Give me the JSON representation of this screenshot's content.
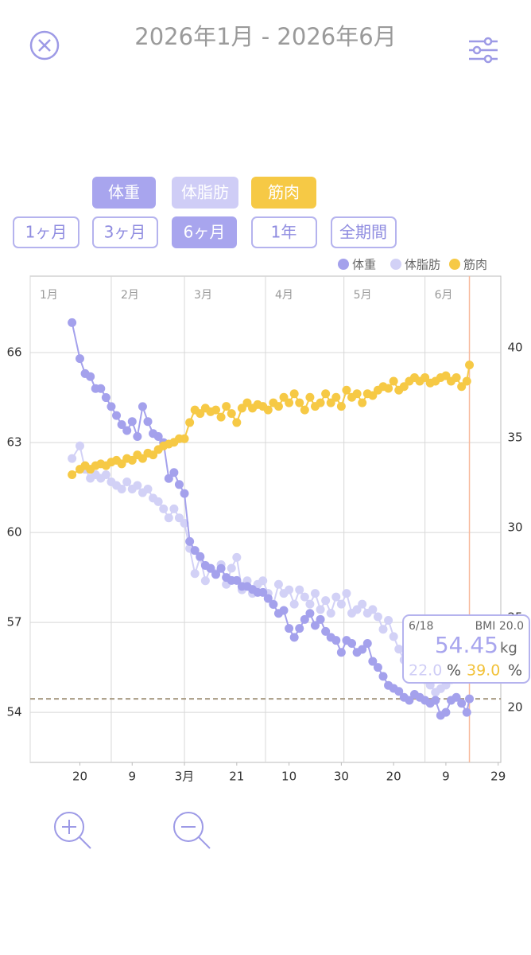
{
  "header": {
    "title": "2026年1月 - 2026年6月"
  },
  "series_toggles": [
    "体重",
    "体脂肪",
    "筋肉"
  ],
  "ranges": [
    "1ヶ月",
    "3ヶ月",
    "6ヶ月",
    "1年",
    "全期間"
  ],
  "chart_data": {
    "type": "line",
    "x": [
      16,
      19,
      21,
      23,
      25,
      27,
      29,
      31,
      33,
      35,
      37,
      39,
      41,
      43,
      45,
      47,
      49,
      51,
      53,
      55,
      57,
      59,
      61,
      63,
      65,
      67,
      69,
      71,
      73,
      75,
      77,
      79,
      81,
      83,
      85,
      87,
      89,
      91,
      93,
      95,
      97,
      99,
      101,
      103,
      105,
      107,
      109,
      111,
      113,
      115,
      117,
      119,
      121,
      123,
      125,
      127,
      129,
      131,
      133,
      135,
      137,
      139,
      141,
      143,
      145,
      147,
      149,
      151,
      153,
      155,
      157,
      159,
      161,
      163,
      165,
      167,
      168
    ],
    "xlim": [
      0,
      180
    ],
    "xticks": [
      {
        "value": 19,
        "label": "20"
      },
      {
        "value": 39,
        "label": "9"
      },
      {
        "value": 59,
        "label": "3月"
      },
      {
        "value": 79,
        "label": "21"
      },
      {
        "value": 99,
        "label": "10"
      },
      {
        "value": 119,
        "label": "30"
      },
      {
        "value": 139,
        "label": "20"
      },
      {
        "value": 159,
        "label": "9"
      },
      {
        "value": 179,
        "label": "29"
      }
    ],
    "month_ticks": [
      {
        "value": 0,
        "label": "1月"
      },
      {
        "value": 31,
        "label": "2月"
      },
      {
        "value": 59,
        "label": "3月"
      },
      {
        "value": 90,
        "label": "4月"
      },
      {
        "value": 120,
        "label": "5月"
      },
      {
        "value": 151,
        "label": "6月"
      }
    ],
    "ylim": [
      52.33,
      68.55
    ],
    "yticks": [
      54,
      57,
      60,
      63,
      66
    ],
    "y2lim": [
      16.9,
      43.94
    ],
    "y2ticks": [
      20,
      25,
      30,
      35,
      40
    ],
    "grid": true,
    "legend": "top-right",
    "selected_x": 168,
    "reference_line": 54.45,
    "series": [
      {
        "name": "体重",
        "color": "#a4a1ec",
        "values": [
          67.0,
          65.8,
          65.3,
          65.2,
          64.8,
          64.8,
          64.5,
          64.2,
          63.9,
          63.6,
          63.4,
          63.7,
          63.2,
          64.2,
          63.7,
          63.3,
          63.2,
          63.0,
          61.8,
          62.0,
          61.6,
          61.3,
          59.7,
          59.4,
          59.2,
          58.9,
          58.8,
          58.6,
          58.8,
          58.5,
          58.4,
          58.4,
          58.2,
          58.2,
          58.1,
          58.0,
          58.0,
          57.8,
          57.6,
          57.3,
          57.4,
          56.8,
          56.5,
          56.8,
          57.1,
          57.3,
          56.9,
          57.1,
          56.7,
          56.5,
          56.4,
          56.0,
          56.4,
          56.3,
          56.0,
          56.1,
          56.3,
          55.7,
          55.5,
          55.2,
          54.9,
          54.8,
          54.7,
          54.5,
          54.4,
          54.6,
          54.5,
          54.4,
          54.3,
          54.4,
          53.9,
          54.0,
          54.4,
          54.5,
          54.3,
          54.0,
          54.45
        ]
      },
      {
        "name": "体脂肪",
        "color": "#d2d1f6",
        "axis": "y2",
        "values": [
          33.8,
          34.5,
          33.2,
          32.7,
          32.9,
          32.7,
          32.9,
          32.5,
          32.3,
          32.1,
          32.5,
          32.1,
          32.3,
          31.9,
          32.1,
          31.6,
          31.4,
          31.0,
          30.5,
          31.0,
          30.5,
          30.2,
          28.8,
          27.4,
          28.3,
          27.0,
          27.7,
          27.4,
          27.9,
          26.8,
          27.7,
          28.3,
          26.5,
          27.0,
          26.3,
          26.8,
          27.0,
          26.3,
          25.7,
          26.8,
          26.3,
          26.5,
          25.7,
          26.5,
          26.1,
          25.7,
          26.3,
          25.4,
          25.9,
          25.2,
          26.1,
          25.7,
          26.3,
          25.2,
          25.4,
          25.7,
          25.2,
          25.4,
          25.0,
          24.3,
          24.8,
          23.9,
          23.2,
          22.6,
          22.1,
          21.9,
          21.7,
          21.5,
          21.2,
          20.8,
          21.0,
          21.2,
          21.5,
          21.7,
          21.9,
          21.8,
          22.0
        ]
      },
      {
        "name": "筋肉",
        "color": "#f6c945",
        "axis": "y2",
        "values": [
          32.9,
          33.2,
          33.4,
          33.2,
          33.4,
          33.5,
          33.4,
          33.6,
          33.7,
          33.5,
          33.8,
          33.7,
          34.0,
          33.8,
          34.1,
          34.0,
          34.3,
          34.5,
          34.6,
          34.7,
          34.9,
          34.9,
          35.8,
          36.5,
          36.3,
          36.6,
          36.4,
          36.5,
          36.1,
          36.7,
          36.3,
          35.8,
          36.6,
          36.9,
          36.6,
          36.8,
          36.7,
          36.5,
          36.9,
          36.7,
          37.2,
          36.9,
          37.4,
          36.9,
          36.5,
          37.2,
          36.7,
          36.9,
          37.4,
          36.9,
          37.2,
          36.7,
          37.6,
          37.2,
          37.4,
          36.9,
          37.4,
          37.3,
          37.6,
          37.8,
          37.7,
          38.1,
          37.6,
          37.8,
          38.1,
          38.3,
          38.1,
          38.3,
          38.0,
          38.1,
          38.3,
          38.4,
          38.1,
          38.3,
          37.8,
          38.1,
          39.0
        ]
      }
    ]
  },
  "tooltip": {
    "date": "6/18",
    "bmi": "BMI 20.0",
    "weight": "54.45",
    "weight_unit": "kg",
    "fat": "22.0",
    "fat_unit": "%",
    "muscle": "39.0",
    "muscle_unit": "%"
  }
}
